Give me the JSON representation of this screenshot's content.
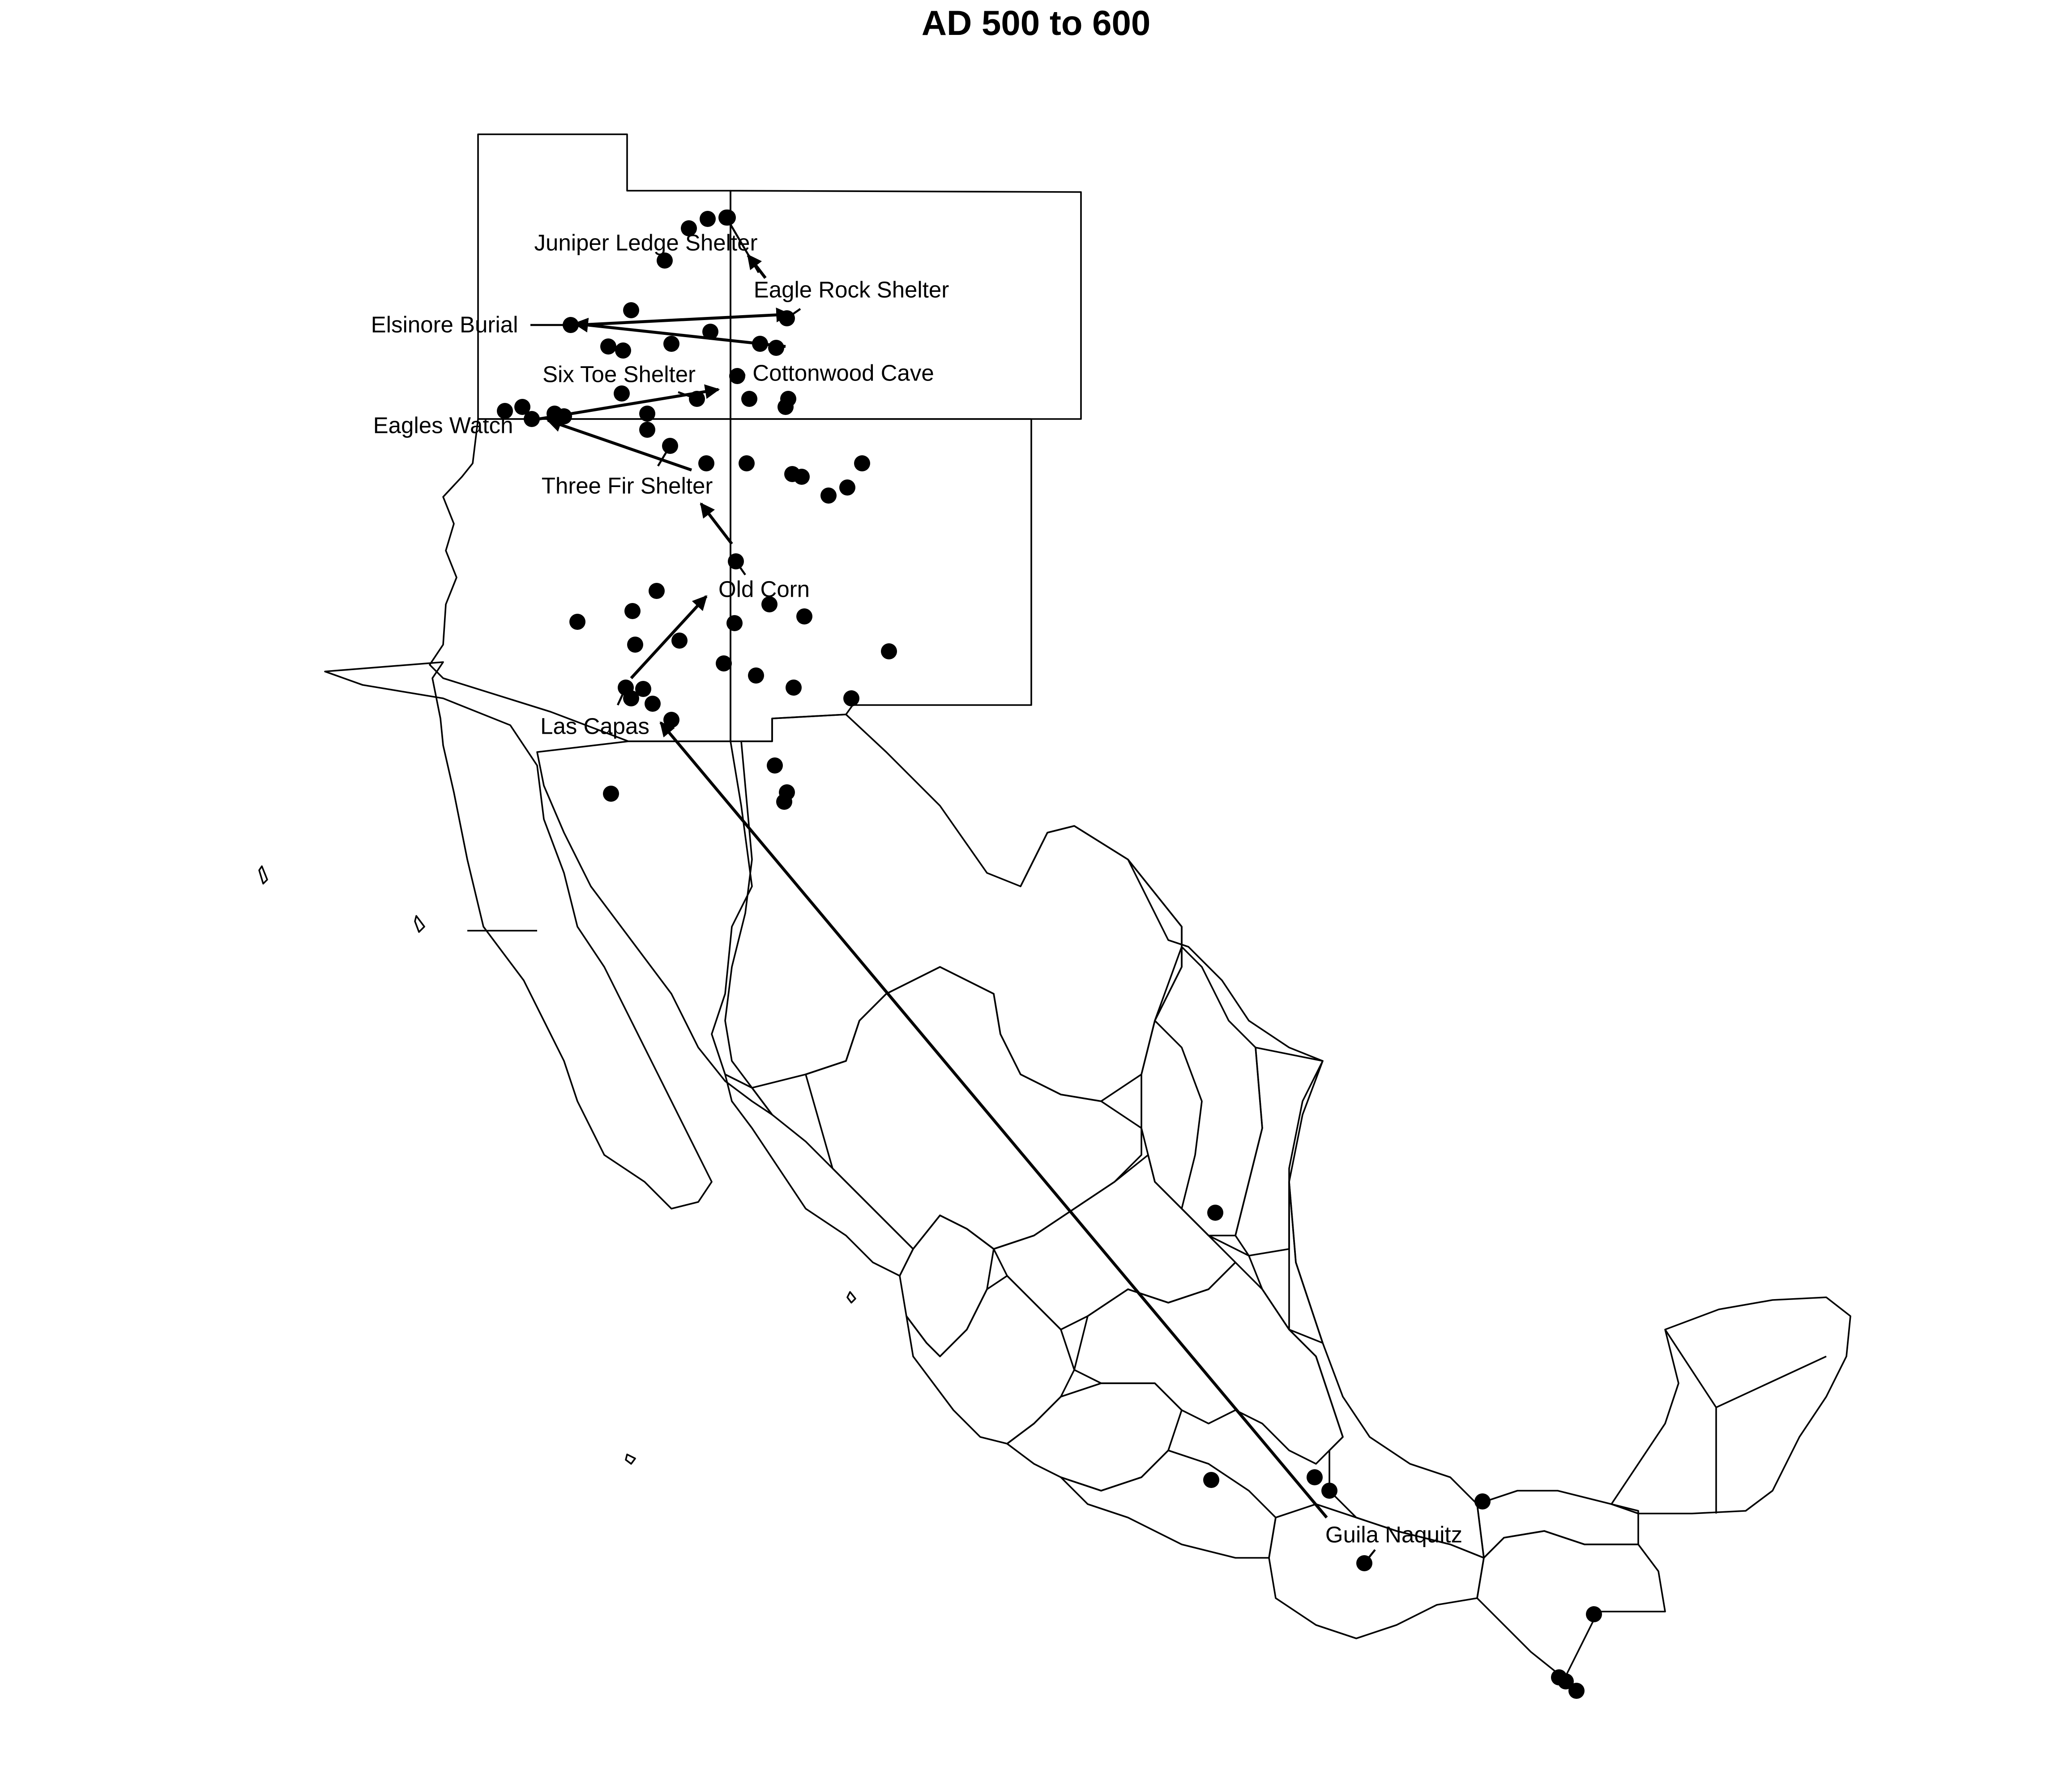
{
  "title": "AD 500 to 600",
  "colors": {
    "ink": "#000000",
    "background": "#ffffff"
  },
  "sites": [
    "Juniper Ledge Shelter",
    "Eagle Rock Shelter",
    "Elsinore Burial",
    "Six Toe Shelter",
    "Cottonwood Cave",
    "Eagles Watch",
    "Three Fir Shelter",
    "Old Corn",
    "Las Capas",
    "Guila Naquitz"
  ],
  "routes": [
    {
      "from": "Guila Naquitz",
      "to": "Las Capas"
    },
    {
      "from": "Las Capas",
      "to": "Old Corn"
    },
    {
      "from": "Old Corn",
      "to": "Three Fir Shelter"
    },
    {
      "from": "Three Fir Shelter",
      "to": "Eagles Watch"
    },
    {
      "from": "Eagles Watch",
      "to": "Cottonwood Cave"
    },
    {
      "from": "Cottonwood Cave",
      "to": "Elsinore Burial"
    },
    {
      "from": "Elsinore Burial",
      "to": "Eagle Rock Shelter"
    },
    {
      "from": "Eagle Rock Shelter",
      "to": "Juniper Ledge Shelter"
    }
  ]
}
